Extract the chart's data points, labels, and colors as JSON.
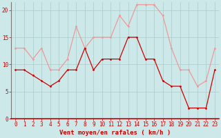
{
  "hours": [
    0,
    1,
    2,
    3,
    4,
    5,
    6,
    7,
    8,
    9,
    10,
    11,
    12,
    13,
    14,
    15,
    16,
    17,
    18,
    19,
    20,
    21,
    22,
    23
  ],
  "vent_moyen": [
    9,
    9,
    8,
    7,
    6,
    7,
    9,
    9,
    13,
    9,
    11,
    11,
    11,
    15,
    15,
    11,
    11,
    7,
    6,
    6,
    2,
    2,
    2,
    9
  ],
  "rafales": [
    13,
    13,
    11,
    13,
    9,
    9,
    11,
    17,
    13,
    15,
    15,
    15,
    19,
    17,
    21,
    21,
    21,
    19,
    13,
    9,
    9,
    6,
    7,
    13
  ],
  "bg_color": "#cce8e8",
  "grid_color": "#aacccc",
  "line_moyen_color": "#cc0000",
  "line_rafales_color": "#ee9999",
  "xlabel": "Vent moyen/en rafales ( km/h )",
  "yticks": [
    0,
    5,
    10,
    15,
    20
  ],
  "ylim": [
    0,
    21.5
  ],
  "xlim_min": -0.5,
  "xlim_max": 23.5,
  "tick_fontsize": 5.5,
  "xlabel_fontsize": 6.5,
  "marker_size": 2.0,
  "linewidth": 0.9
}
